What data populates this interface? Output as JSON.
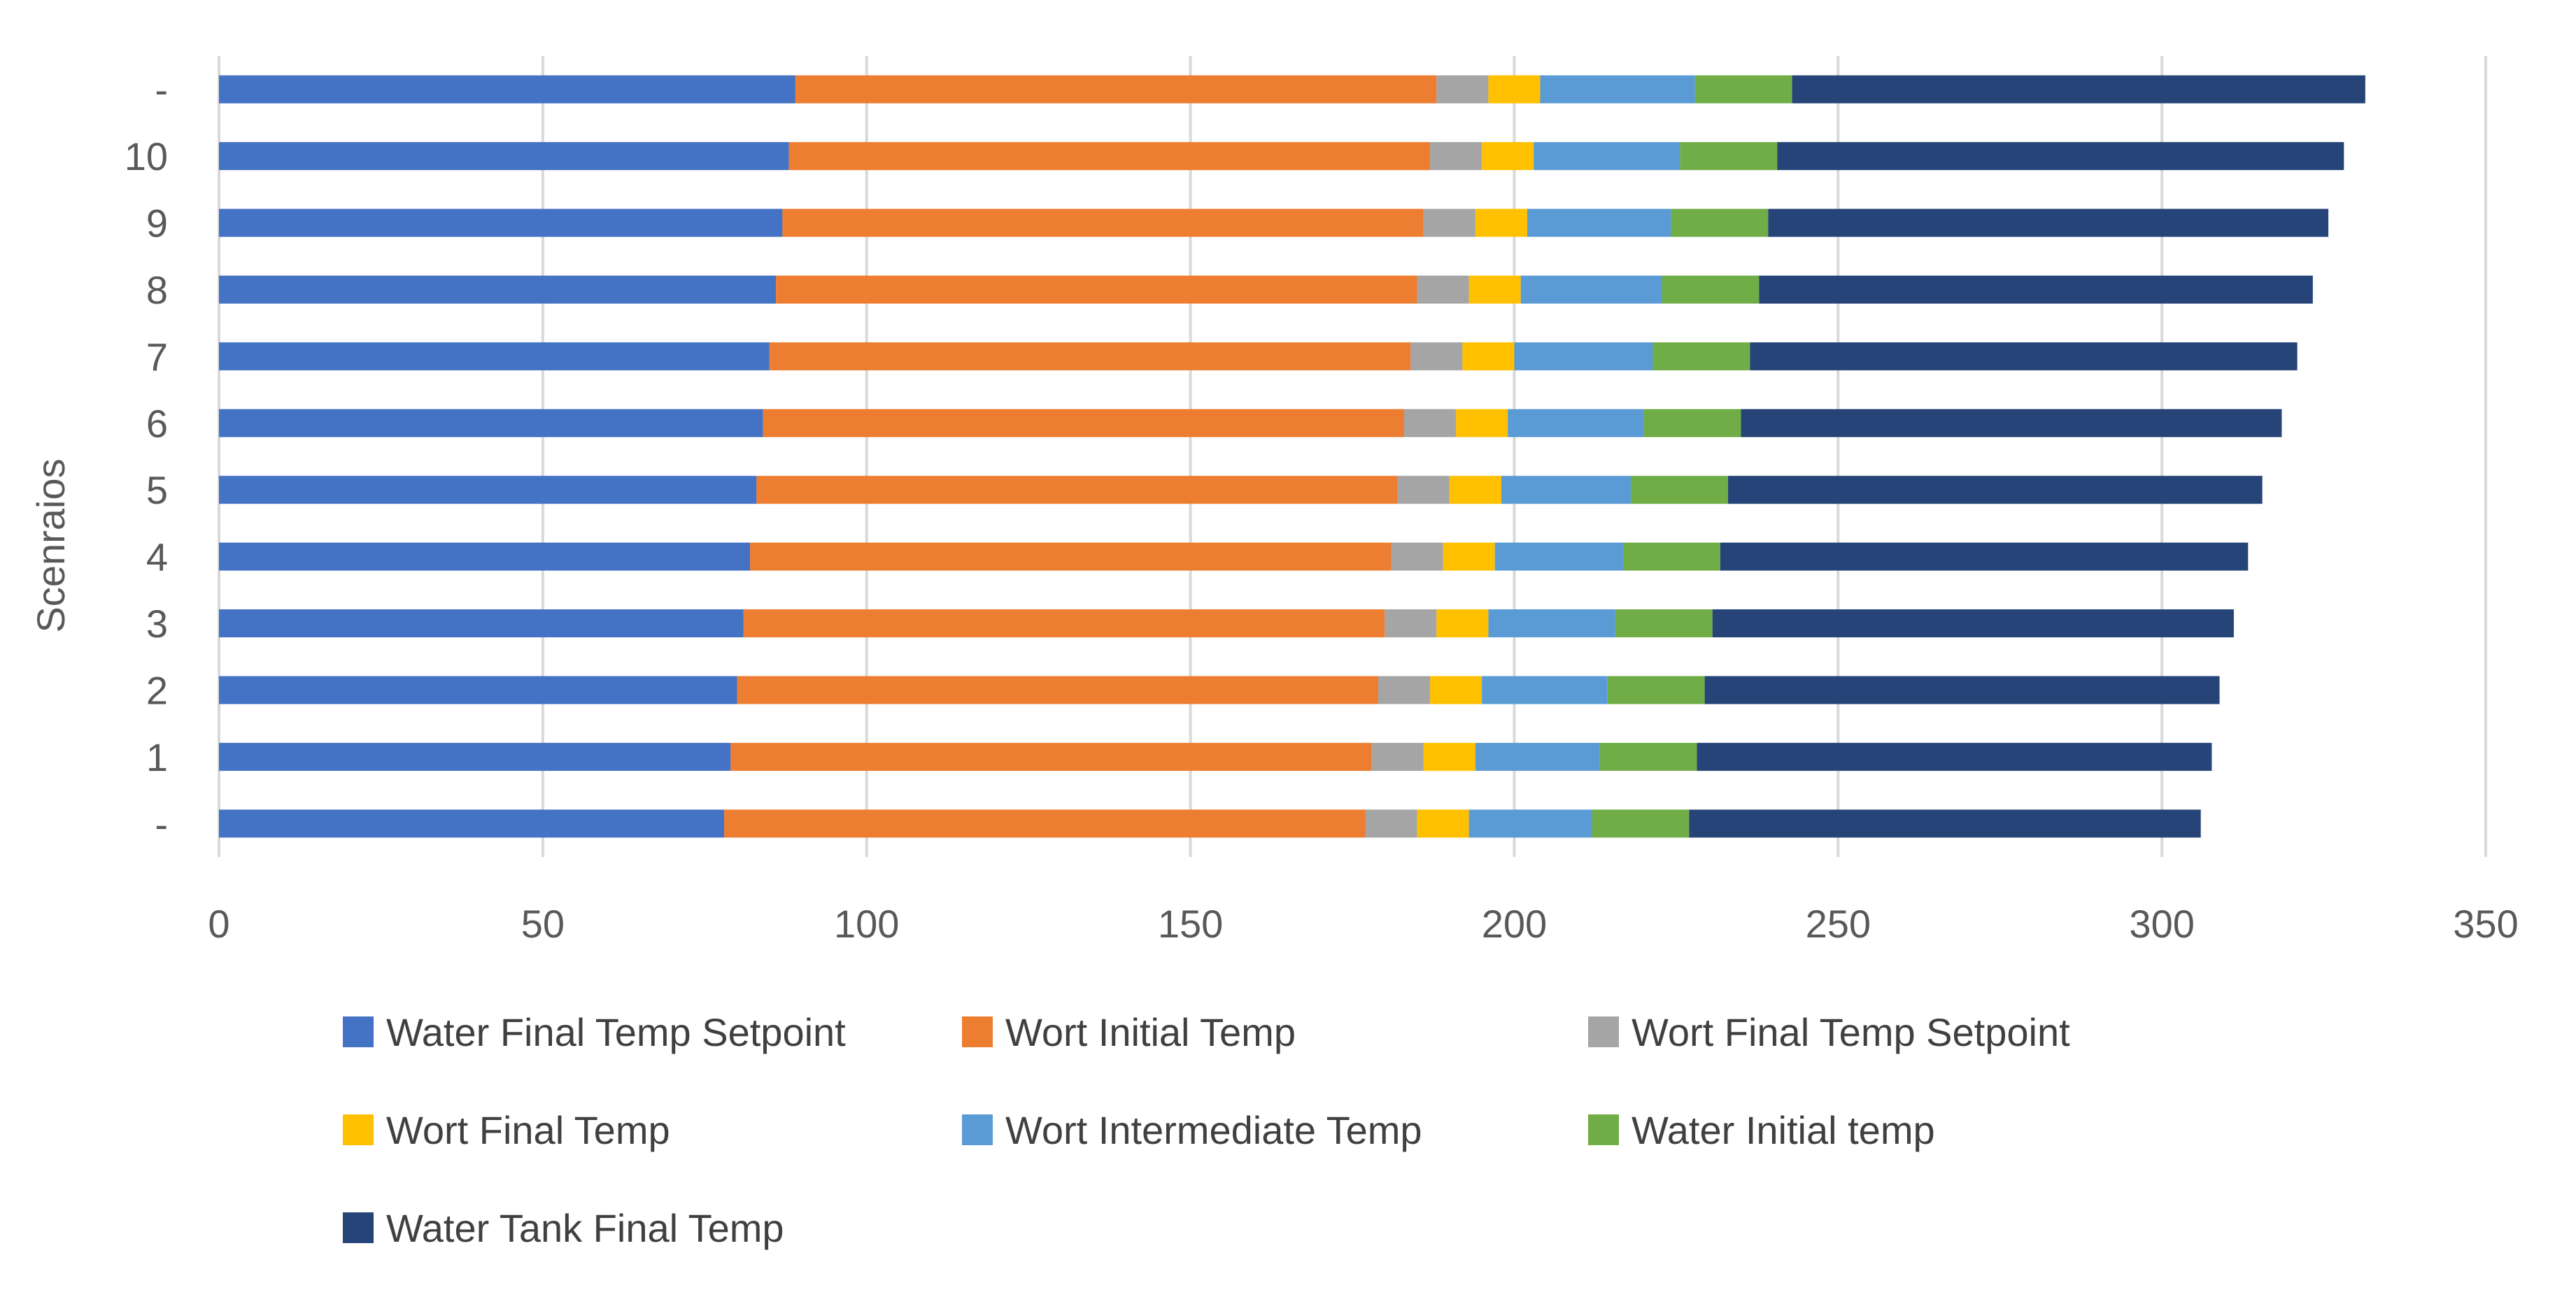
{
  "chart_data": {
    "type": "bar",
    "orientation": "horizontal",
    "stacked": true,
    "title": "",
    "xlabel": "",
    "ylabel": "Scenraios",
    "xlim": [
      0,
      350
    ],
    "xticks": [
      0,
      50,
      100,
      150,
      200,
      250,
      300,
      350
    ],
    "grid": "vertical",
    "legend_position": "bottom",
    "categories": [
      "-",
      "1",
      "2",
      "3",
      "4",
      "5",
      "6",
      "7",
      "8",
      "9",
      "10",
      "-"
    ],
    "series": [
      {
        "name": "Water Final Temp Setpoint",
        "color": "#4472C4",
        "values": [
          78,
          79,
          80,
          81,
          82,
          83,
          84,
          85,
          86,
          87,
          88,
          89
        ]
      },
      {
        "name": "Wort Initial Temp",
        "color": "#ED7D31",
        "values": [
          99,
          99,
          99,
          99,
          99,
          99,
          99,
          99,
          99,
          99,
          99,
          99
        ]
      },
      {
        "name": "Wort Final Temp Setpoint",
        "color": "#A5A5A5",
        "values": [
          8,
          8,
          8,
          8,
          8,
          8,
          8,
          8,
          8,
          8,
          8,
          8
        ]
      },
      {
        "name": "Wort Final Temp",
        "color": "#FFC000",
        "values": [
          8,
          8,
          8,
          8,
          8,
          8,
          8,
          8,
          8,
          8,
          8,
          8
        ]
      },
      {
        "name": "Wort Intermediate Temp",
        "color": "#5B9BD5",
        "values": [
          19,
          19.2,
          19.4,
          19.6,
          19.8,
          20,
          21,
          21.4,
          21.8,
          22.2,
          22.6,
          23.9
        ]
      },
      {
        "name": "Water Initial temp",
        "color": "#70AD47",
        "values": [
          15,
          15,
          15,
          15,
          15,
          15,
          15,
          15,
          15,
          15,
          15,
          15
        ]
      },
      {
        "name": "Water Tank Final Temp",
        "color": "#264478",
        "values": [
          79,
          79.5,
          79.5,
          80.5,
          81.5,
          82.5,
          83.5,
          84.5,
          85.5,
          86.5,
          87.5,
          88.5
        ]
      }
    ]
  }
}
